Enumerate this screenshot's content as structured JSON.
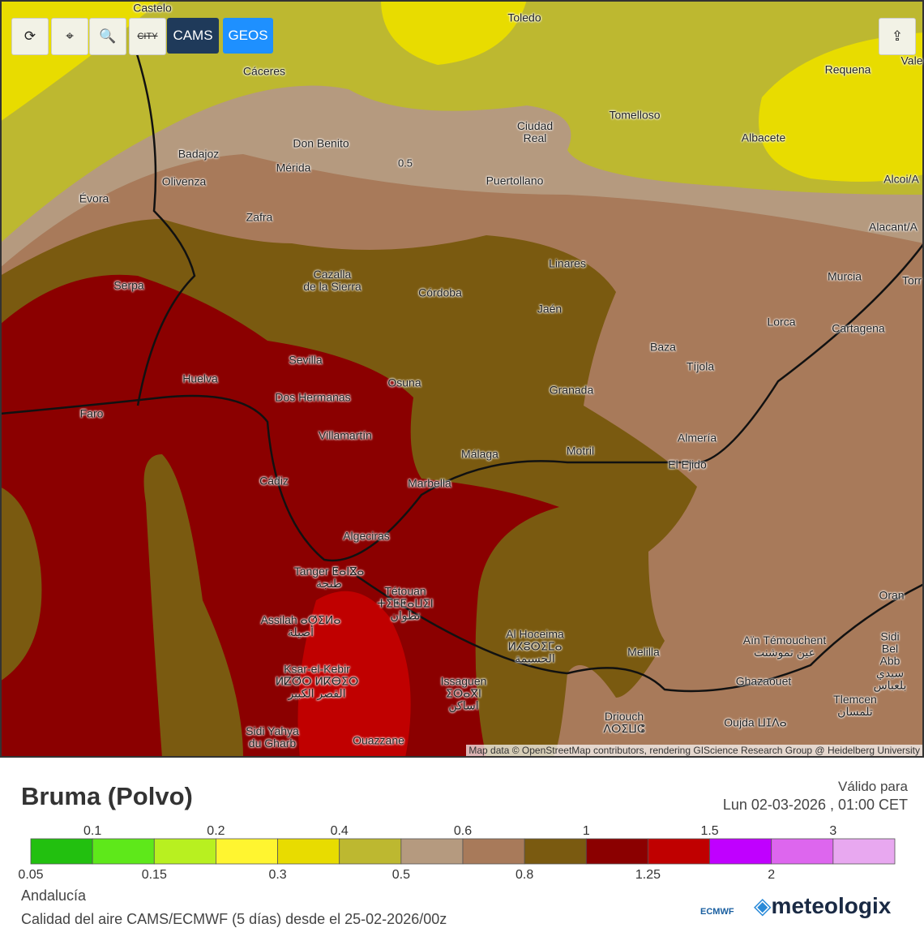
{
  "toolbar": {
    "city": "CITY",
    "cams": "CAMS",
    "geos": "GEOS"
  },
  "map": {
    "contour_label": "0.5",
    "attribution": "Map data © OpenStreetMap contributors, rendering GIScience Research Group @ Heidelberg University",
    "cities": [
      "Castelo",
      "Toledo",
      "Cáceres",
      "Requena",
      "Vale",
      "Tomelloso",
      "Ciudad\nReal",
      "Albacete",
      "Badajoz",
      "Don Benito",
      "Mérida",
      "Puertollano",
      "Olivenza",
      "Évora",
      "Zafra",
      "Alcoi/A",
      "Alacant/A",
      "Linares",
      "Murcia",
      "Cazalla\nde la Sierra",
      "Serpa",
      "Córdoba",
      "Jaén",
      "Lorca",
      "Cartagena",
      "Torr",
      "Sevilla",
      "Baza",
      "Tíjola",
      "Huelva",
      "Osuna",
      "Granada",
      "Dos Hermanas",
      "Faro",
      "Villamartín",
      "Almería",
      "Málaga",
      "Motril",
      "El Ejido",
      "Cádiz",
      "Marbella",
      "Algeciras",
      "Tanger ⵟⴰⵏⴵⴰ\nطنجة",
      "Tétouan\nⵜⵉⵟⵟⴰⵡⵉⵏ\nتطوان",
      "Assilah ⴰⵚⵉⵍⴰ\nأصيلة",
      "Oran",
      "Al Hoceima\nⵍⵃⵓⵙⵉⵎⴰ\nالحسيمة",
      "Aïn Témouchent\nعين تموشنت",
      "Melilla",
      "Sidi Bel Abb\nسيدي بلعباس",
      "Ksar-el-Kebir\nⵍⵇⵚⵔ ⵍⴽⴱⵉⵔ\nالقصر الكبير",
      "Issaguen\nⵉⵙⴰⴳⵏ\nاساكن",
      "Ghazaouet",
      "Tlemcen\nتلمسان",
      "Driouch\nⴷⵔⵉⵡⵛ",
      "Oujda ⵡⵊⴷⴰ",
      "Sidi Yahya\ndu Gharb",
      "Ouazzane"
    ]
  },
  "legend": {
    "title": "Bruma (Polvo)",
    "valid_label": "Válido para",
    "valid_time": "Lun 02-03-2026 , 01:00 CET",
    "colors": [
      "#22c00f",
      "#5ee81a",
      "#b8f020",
      "#fff530",
      "#e8dc00",
      "#bdb830",
      "#b59a7f",
      "#a87a5a",
      "#7a5a10",
      "#8b0000",
      "#c00000",
      "#c000ff",
      "#dd66ee",
      "#e8a8f0"
    ],
    "top_labels": [
      "0.1",
      "0.2",
      "0.4",
      "0.6",
      "1",
      "1.5",
      "3"
    ],
    "bottom_labels": [
      "0.05",
      "0.15",
      "0.3",
      "0.5",
      "0.8",
      "1.25",
      "2"
    ]
  },
  "footer": {
    "region": "Andalucía",
    "source": "Calidad del aire CAMS/ECMWF (5 días) desde el 25-02-2026/00z",
    "ecmwf": "ECMWF",
    "brand": "meteologix"
  }
}
